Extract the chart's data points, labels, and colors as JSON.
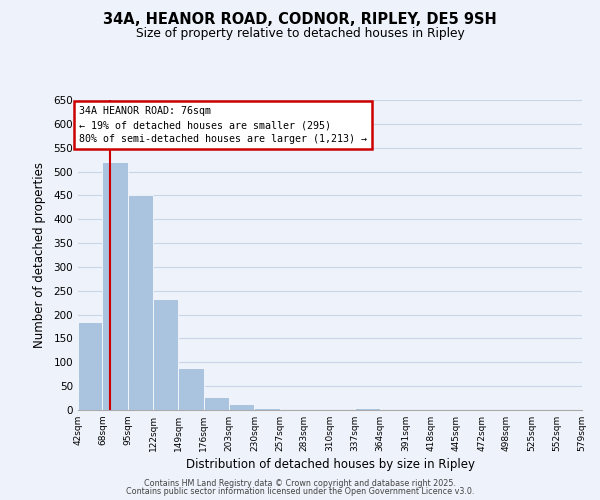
{
  "title": "34A, HEANOR ROAD, CODNOR, RIPLEY, DE5 9SH",
  "subtitle": "Size of property relative to detached houses in Ripley",
  "xlabel": "Distribution of detached houses by size in Ripley",
  "ylabel": "Number of detached properties",
  "bar_edges": [
    42,
    68,
    95,
    122,
    149,
    176,
    203,
    230,
    257,
    283,
    310,
    337,
    364,
    391,
    418,
    445,
    472,
    498,
    525,
    552,
    579
  ],
  "bar_heights": [
    185,
    520,
    450,
    232,
    88,
    27,
    13,
    4,
    1,
    0,
    0,
    4,
    0,
    0,
    0,
    0,
    0,
    0,
    0,
    0
  ],
  "bar_color": "#aac4e0",
  "ylim": [
    0,
    650
  ],
  "yticks": [
    0,
    50,
    100,
    150,
    200,
    250,
    300,
    350,
    400,
    450,
    500,
    550,
    600,
    650
  ],
  "grid_color": "#c8d4e8",
  "background_color": "#eef2fa",
  "property_line_x": 76,
  "property_line_color": "#cc0000",
  "annotation_text": "34A HEANOR ROAD: 76sqm\n← 19% of detached houses are smaller (295)\n80% of semi-detached houses are larger (1,213) →",
  "annotation_box_color": "#cc0000",
  "footer_line1": "Contains HM Land Registry data © Crown copyright and database right 2025.",
  "footer_line2": "Contains public sector information licensed under the Open Government Licence v3.0.",
  "x_tick_labels": [
    "42sqm",
    "68sqm",
    "95sqm",
    "122sqm",
    "149sqm",
    "176sqm",
    "203sqm",
    "230sqm",
    "257sqm",
    "283sqm",
    "310sqm",
    "337sqm",
    "364sqm",
    "391sqm",
    "418sqm",
    "445sqm",
    "472sqm",
    "498sqm",
    "525sqm",
    "552sqm",
    "579sqm"
  ]
}
